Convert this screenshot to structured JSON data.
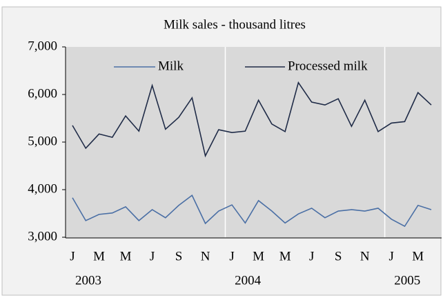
{
  "chart_data": {
    "type": "line",
    "title": "Milk sales - thousand litres",
    "categories": [
      "J",
      null,
      "M",
      null,
      "M",
      null,
      "J",
      null,
      "S",
      null,
      "N",
      null,
      "J",
      null,
      "M",
      null,
      "M",
      null,
      "J",
      null,
      "S",
      null,
      "N",
      null,
      "J",
      null,
      "M",
      null
    ],
    "years": [
      "2003",
      "2004",
      "2005"
    ],
    "series": [
      {
        "name": "Milk",
        "color": "#4a6fa5",
        "values": [
          3830,
          3350,
          3480,
          3510,
          3640,
          3350,
          3580,
          3410,
          3670,
          3880,
          3290,
          3550,
          3680,
          3300,
          3770,
          3550,
          3300,
          3490,
          3610,
          3410,
          3550,
          3580,
          3550,
          3610,
          3380,
          3230,
          3670,
          3580
        ]
      },
      {
        "name": "Processed milk",
        "color": "#1f2b47",
        "values": [
          5350,
          4870,
          5170,
          5100,
          5550,
          5230,
          6190,
          5270,
          5520,
          5930,
          4710,
          5260,
          5200,
          5230,
          5880,
          5380,
          5220,
          6250,
          5840,
          5780,
          5910,
          5330,
          5880,
          5220,
          5400,
          5430,
          6040,
          5780
        ]
      }
    ],
    "ylim": [
      3000,
      7000
    ],
    "yticks": [
      {
        "value": 3000,
        "label": "3,000"
      },
      {
        "value": 4000,
        "label": "4,000"
      },
      {
        "value": 5000,
        "label": "5,000"
      },
      {
        "value": 6000,
        "label": "6,000"
      },
      {
        "value": 7000,
        "label": "7,000"
      }
    ],
    "legend": "top"
  }
}
